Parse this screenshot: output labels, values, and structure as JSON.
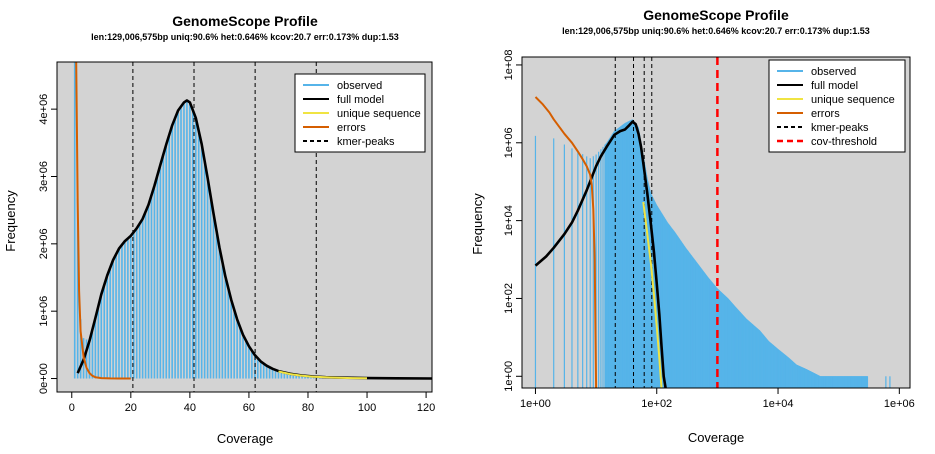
{
  "chart_data": [
    {
      "type": "line",
      "title": "GenomeScope Profile",
      "subtitle": "len:129,006,575bp uniq:90.6% het:0.646% kcov:20.7 err:0.173% dup:1.53",
      "xlabel": "Coverage",
      "ylabel": "Frequency",
      "xlim": [
        -5,
        122
      ],
      "ylim": [
        -200000,
        4700000
      ],
      "x_ticks": [
        0,
        20,
        40,
        60,
        80,
        100,
        120
      ],
      "x_tick_labels": [
        "0",
        "20",
        "40",
        "60",
        "80",
        "100",
        "120"
      ],
      "y_ticks": [
        0,
        1000000,
        2000000,
        3000000,
        4000000
      ],
      "y_tick_labels": [
        "0e+00",
        "1e+06",
        "2e+06",
        "3e+06",
        "4e+06"
      ],
      "background": "#d3d3d3",
      "kmer_peaks": [
        20.7,
        41.4,
        62.1,
        82.8
      ],
      "legend": {
        "position": "top-right",
        "entries": [
          {
            "label": "observed",
            "color": "#56b4e9",
            "dash": false
          },
          {
            "label": "full model",
            "color": "#000000",
            "dash": false
          },
          {
            "label": "unique sequence",
            "color": "#f0e442",
            "dash": false
          },
          {
            "label": "errors",
            "color": "#d55e00",
            "dash": false
          },
          {
            "label": "kmer-peaks",
            "color": "#000000",
            "dash": true
          }
        ]
      },
      "series": [
        {
          "name": "full model",
          "color": "#000000",
          "x": [
            2,
            4,
            6,
            8,
            10,
            12,
            14,
            16,
            18,
            20,
            22,
            24,
            26,
            28,
            30,
            32,
            34,
            36,
            38,
            39,
            40,
            42,
            44,
            46,
            48,
            50,
            52,
            54,
            56,
            58,
            60,
            62,
            64,
            66,
            68,
            70,
            74,
            78,
            82,
            86,
            90,
            100,
            110,
            122
          ],
          "y": [
            80000,
            280000,
            560000,
            900000,
            1250000,
            1530000,
            1760000,
            1930000,
            2040000,
            2120000,
            2230000,
            2370000,
            2580000,
            2860000,
            3170000,
            3480000,
            3760000,
            3980000,
            4100000,
            4130000,
            4100000,
            3870000,
            3480000,
            2980000,
            2450000,
            1950000,
            1520000,
            1170000,
            880000,
            650000,
            480000,
            350000,
            255000,
            190000,
            145000,
            110000,
            70000,
            45000,
            30000,
            20000,
            14000,
            7000,
            3000,
            1000
          ]
        },
        {
          "name": "unique sequence",
          "color": "#f0e442",
          "x": [
            70,
            74,
            78,
            82,
            86,
            90,
            95,
            100
          ],
          "y": [
            105000,
            66000,
            42000,
            27000,
            18000,
            12000,
            7000,
            4000
          ]
        },
        {
          "name": "errors",
          "color": "#d55e00",
          "x": [
            1,
            1.5,
            2,
            2.5,
            3,
            4,
            5,
            6,
            7,
            8,
            10,
            13,
            16,
            20
          ],
          "y": [
            4800000,
            4700000,
            2600000,
            1300000,
            700000,
            320000,
            160000,
            80000,
            40000,
            20000,
            6000,
            1500,
            400,
            0
          ]
        }
      ]
    },
    {
      "type": "line",
      "title": "GenomeScope Profile",
      "subtitle": "len:129,006,575bp uniq:90.6% het:0.646% kcov:20.7 err:0.173% dup:1.53",
      "xlabel": "Coverage",
      "ylabel": "Frequency",
      "xscale": "log",
      "yscale": "log",
      "xlim": [
        0.6,
        1500000
      ],
      "ylim": [
        0.5,
        160000000
      ],
      "x_ticks": [
        1,
        100,
        10000,
        1000000
      ],
      "x_tick_labels": [
        "1e+00",
        "1e+02",
        "1e+04",
        "1e+06"
      ],
      "y_ticks": [
        1,
        100,
        10000,
        1000000,
        100000000
      ],
      "y_tick_labels": [
        "1e+00",
        "1e+02",
        "1e+04",
        "1e+06",
        "1e+08"
      ],
      "background": "#d3d3d3",
      "kmer_peaks": [
        20.7,
        41.4,
        62.1,
        82.8
      ],
      "cov_threshold": 1000,
      "legend": {
        "position": "top-right",
        "entries": [
          {
            "label": "observed",
            "color": "#56b4e9",
            "dash": false
          },
          {
            "label": "full model",
            "color": "#000000",
            "dash": false
          },
          {
            "label": "unique sequence",
            "color": "#f0e442",
            "dash": false
          },
          {
            "label": "errors",
            "color": "#d55e00",
            "dash": false
          },
          {
            "label": "kmer-peaks",
            "color": "#000000",
            "dash": true
          },
          {
            "label": "cov-threshold",
            "color": "#ff0000",
            "dash": true
          }
        ]
      },
      "observed_envelope": {
        "x": [
          1,
          2,
          3,
          5,
          8,
          10,
          15,
          20,
          30,
          40,
          50,
          60,
          70,
          80,
          100,
          150,
          200,
          300,
          500,
          700,
          1000,
          1500,
          2000,
          3000,
          5000,
          7000,
          10000,
          15000,
          20000,
          30000,
          50000,
          100000,
          200000,
          300000
        ],
        "y": [
          1500000,
          1300000,
          900000,
          600000,
          400000,
          500000,
          1000000,
          2000000,
          3200000,
          4000000,
          2500000,
          480000,
          120000,
          50000,
          25000,
          9000,
          5000,
          2000,
          700,
          350,
          180,
          100,
          60,
          30,
          15,
          8,
          5,
          3,
          2,
          1.5,
          1,
          1,
          1,
          1
        ]
      },
      "series": [
        {
          "name": "full model",
          "color": "#000000",
          "x": [
            1,
            1.5,
            2,
            3,
            4,
            5,
            7,
            10,
            12,
            15,
            20,
            25,
            30,
            35,
            40,
            45,
            50,
            55,
            60,
            70,
            80,
            90,
            100,
            110,
            120,
            130,
            140
          ],
          "y": [
            700,
            1200,
            2000,
            4500,
            9000,
            18000,
            60000,
            250000,
            450000,
            800000,
            1600000,
            2000000,
            2200000,
            2800000,
            3500000,
            3000000,
            1700000,
            800000,
            300000,
            50000,
            8000,
            1500,
            250,
            40,
            6,
            1,
            0.5
          ]
        },
        {
          "name": "unique sequence",
          "color": "#f0e442",
          "x": [
            60,
            70,
            80,
            90,
            100,
            110,
            120
          ],
          "y": [
            30000,
            4500,
            800,
            120,
            20,
            3,
            0.5
          ]
        },
        {
          "name": "errors",
          "color": "#d55e00",
          "x": [
            1,
            1.3,
            1.7,
            2,
            2.5,
            3,
            4,
            5,
            6,
            7,
            8,
            8.5,
            9,
            9.5,
            10
          ],
          "y": [
            15000000,
            10000000,
            6000000,
            4000000,
            2500000,
            1700000,
            1000000,
            600000,
            380000,
            250000,
            150000,
            80000,
            20000,
            1000,
            0.5
          ]
        }
      ]
    }
  ]
}
